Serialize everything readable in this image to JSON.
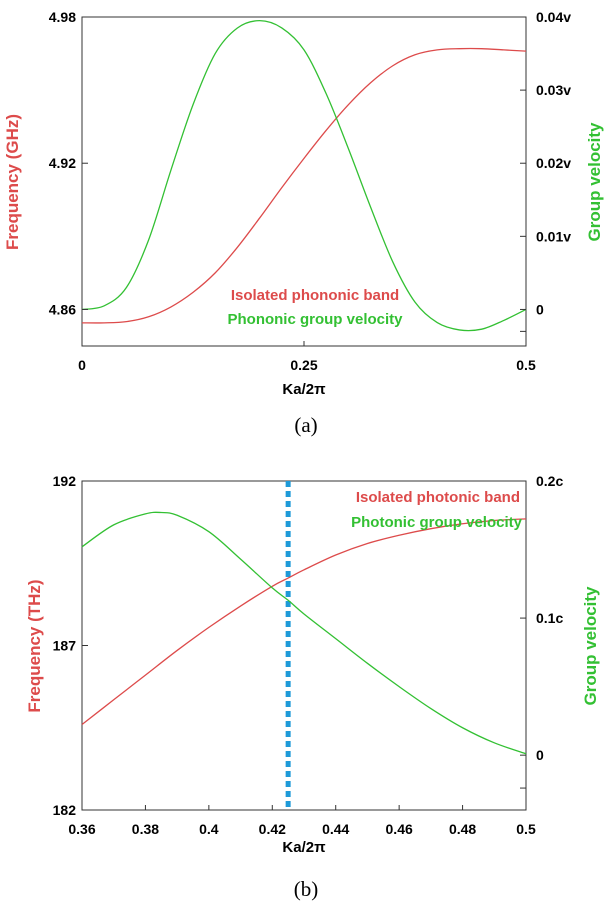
{
  "colors": {
    "band": "#dd4b4b",
    "velocity": "#33c033",
    "marker": "#1e9ad8",
    "axis": "#333333"
  },
  "chart_data": [
    {
      "type": "line",
      "caption": "(a)",
      "xlabel": "Ka/2π",
      "ylabel_left": "Frequency (GHz)",
      "ylabel_right": "Group velocity",
      "xlim": [
        0,
        0.5
      ],
      "ylim_left": [
        4.845,
        4.98
      ],
      "ylim_right": [
        -0.005,
        0.04
      ],
      "x_ticks": [
        0,
        0.25,
        0.5
      ],
      "x_tick_labels": [
        "0",
        "0.25",
        "0.5"
      ],
      "y_left_ticks": [
        4.86,
        4.92,
        4.98
      ],
      "y_left_tick_labels": [
        "4.86",
        "4.92",
        "4.98"
      ],
      "y_right_ticks": [
        0,
        0.01,
        0.02,
        0.03,
        0.04
      ],
      "y_right_tick_labels": [
        "0",
        "0.01v",
        "0.02v",
        "0.03v",
        "0.04v"
      ],
      "legend": [
        "Isolated phononic band",
        "Phononic group velocity"
      ],
      "grid": false,
      "series": [
        {
          "name": "Isolated phononic band",
          "axis": "left",
          "color": "#dd4b4b",
          "x": [
            0,
            0.025,
            0.05,
            0.075,
            0.1,
            0.125,
            0.15,
            0.175,
            0.2,
            0.225,
            0.25,
            0.275,
            0.3,
            0.325,
            0.35,
            0.375,
            0.4,
            0.425,
            0.45,
            0.475,
            0.5
          ],
          "y": [
            4.8545,
            4.8545,
            4.855,
            4.857,
            4.861,
            4.867,
            4.875,
            4.8855,
            4.8975,
            4.91,
            4.922,
            4.9335,
            4.944,
            4.953,
            4.96,
            4.9645,
            4.9665,
            4.967,
            4.967,
            4.9665,
            4.966
          ]
        },
        {
          "name": "Phononic group velocity",
          "axis": "right",
          "color": "#33c033",
          "x": [
            0,
            0.025,
            0.05,
            0.075,
            0.1,
            0.125,
            0.15,
            0.175,
            0.2,
            0.225,
            0.25,
            0.275,
            0.3,
            0.325,
            0.35,
            0.375,
            0.4,
            0.425,
            0.45,
            0.475,
            0.5
          ],
          "y": [
            0,
            0.0005,
            0.003,
            0.0095,
            0.019,
            0.028,
            0.035,
            0.0385,
            0.0395,
            0.0385,
            0.0355,
            0.0295,
            0.022,
            0.014,
            0.0065,
            0.001,
            -0.0018,
            -0.0028,
            -0.0027,
            -0.0015,
            0
          ]
        }
      ]
    },
    {
      "type": "line",
      "caption": "(b)",
      "xlabel": "Ka/2π",
      "ylabel_left": "Frequency (THz)",
      "ylabel_right": "Group velocity",
      "xlim": [
        0.36,
        0.5
      ],
      "ylim_left": [
        182,
        192
      ],
      "ylim_right": [
        -0.04,
        0.2
      ],
      "x_ticks": [
        0.36,
        0.38,
        0.4,
        0.42,
        0.44,
        0.46,
        0.48,
        0.5
      ],
      "x_tick_labels": [
        "0.36",
        "0.38",
        "0.4",
        "0.42",
        "0.44",
        "0.46",
        "0.48",
        "0.5"
      ],
      "y_left_ticks": [
        182,
        187,
        192
      ],
      "y_left_tick_labels": [
        "182",
        "187",
        "192"
      ],
      "y_right_ticks": [
        0,
        0.1,
        0.2
      ],
      "y_right_tick_labels": [
        "0",
        "0.1c",
        "0.2c"
      ],
      "legend": [
        "Isolated photonic band",
        "Photonic group velocity"
      ],
      "marker_x": 0.425,
      "grid": false,
      "series": [
        {
          "name": "Isolated photonic band",
          "axis": "left",
          "color": "#dd4b4b",
          "x": [
            0.36,
            0.37,
            0.38,
            0.39,
            0.4,
            0.41,
            0.42,
            0.425,
            0.43,
            0.44,
            0.45,
            0.46,
            0.47,
            0.48,
            0.49,
            0.5
          ],
          "y": [
            184.6,
            185.35,
            186.1,
            186.85,
            187.55,
            188.2,
            188.8,
            189.05,
            189.3,
            189.75,
            190.1,
            190.35,
            190.55,
            190.7,
            190.8,
            190.85
          ]
        },
        {
          "name": "Photonic group velocity",
          "axis": "right",
          "color": "#33c033",
          "x": [
            0.36,
            0.37,
            0.38,
            0.385,
            0.39,
            0.4,
            0.41,
            0.42,
            0.425,
            0.43,
            0.44,
            0.45,
            0.46,
            0.47,
            0.48,
            0.49,
            0.5
          ],
          "y": [
            0.152,
            0.168,
            0.176,
            0.177,
            0.175,
            0.163,
            0.143,
            0.122,
            0.113,
            0.103,
            0.085,
            0.067,
            0.05,
            0.034,
            0.02,
            0.009,
            0.001
          ]
        }
      ]
    }
  ]
}
